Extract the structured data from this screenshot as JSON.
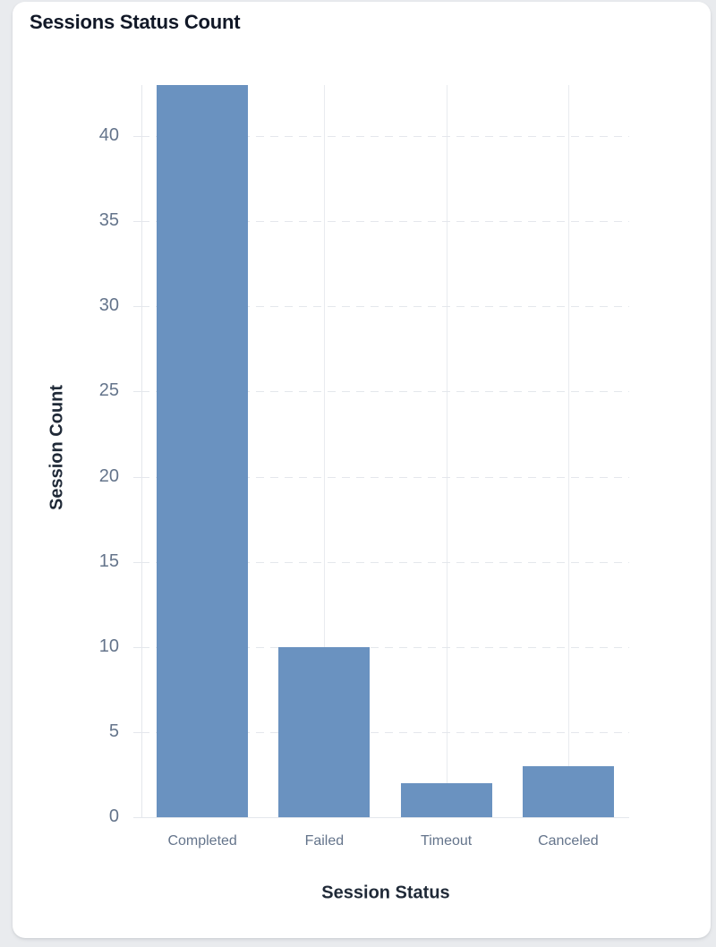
{
  "card": {
    "title": "Sessions Status Count"
  },
  "chart_data": {
    "type": "bar",
    "title": "Sessions Status Count",
    "categories": [
      "Completed",
      "Failed",
      "Timeout",
      "Canceled"
    ],
    "values": [
      43,
      10,
      2,
      3
    ],
    "xlabel": "Session Status",
    "ylabel": "Session Count",
    "ylim": [
      0,
      43
    ],
    "yticks": [
      0,
      5,
      10,
      15,
      20,
      25,
      30,
      35,
      40
    ],
    "grid": true,
    "legend": false,
    "colors": {
      "bar": "#6a92c0",
      "h_gridline": "#e4e7ec",
      "v_gridline": "#e8ebef",
      "axis_line": "#e4e7ec",
      "tick_label": "#64748b",
      "axis_title": "#1f2937",
      "title": "#111827",
      "card_bg": "#ffffff",
      "page_bg": "#e9ebee"
    }
  }
}
